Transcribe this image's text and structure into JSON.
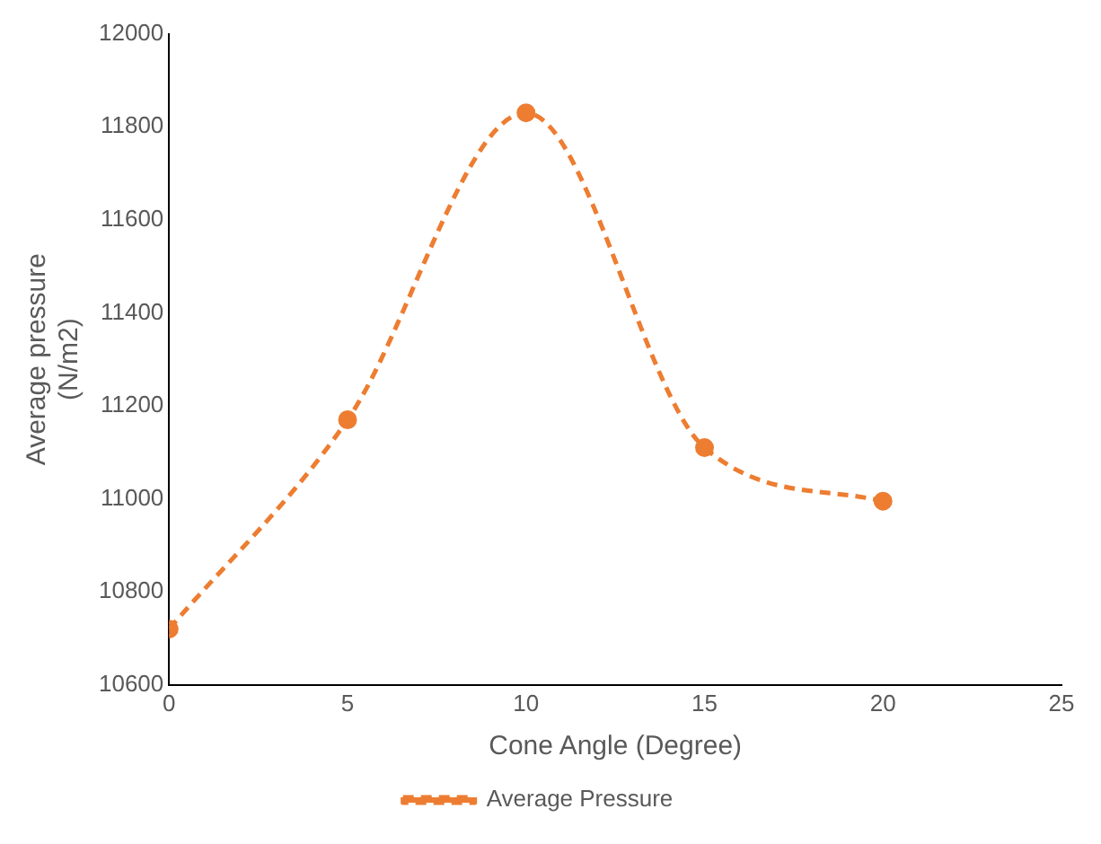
{
  "chart_data": {
    "type": "line",
    "xlabel": "Cone Angle (Degree)",
    "ylabel": "Average pressure (N/m2)",
    "x": [
      0,
      5,
      10,
      15,
      20
    ],
    "series": [
      {
        "name": "Average Pressure",
        "color": "#ed7d31",
        "values": [
          10720,
          11170,
          11830,
          11110,
          10995
        ]
      }
    ],
    "xlim": [
      0,
      25
    ],
    "xticks": [
      0,
      5,
      10,
      15,
      20,
      25
    ],
    "ylim": [
      10600,
      12000
    ],
    "yticks": [
      10600,
      10800,
      11000,
      11200,
      11400,
      11600,
      11800,
      12000
    ],
    "grid": false,
    "legend": "bottom",
    "marker": "circle",
    "line_style": "dashed"
  }
}
